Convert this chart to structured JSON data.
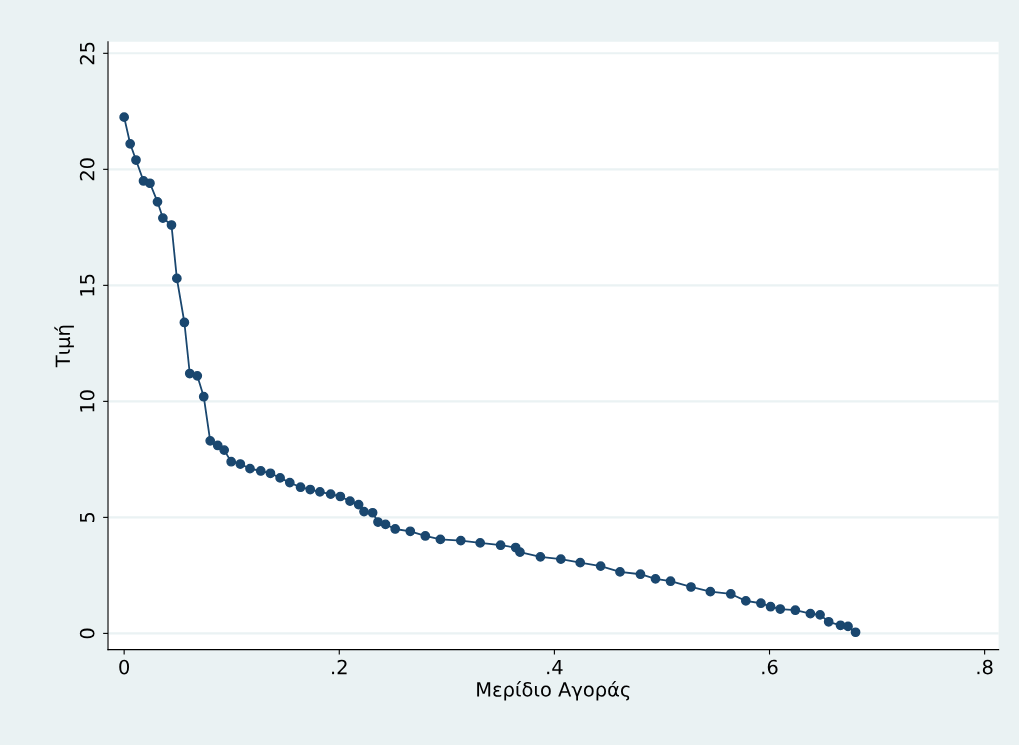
{
  "chart_data": {
    "type": "line",
    "xlabel": "Μερίδιο Αγοράς",
    "ylabel": "Τιμή",
    "x": [
      0,
      0.0056,
      0.011,
      0.018,
      0.024,
      0.031,
      0.036,
      0.044,
      0.049,
      0.056,
      0.061,
      0.068,
      0.074,
      0.08,
      0.087,
      0.093,
      0.0995,
      0.108,
      0.117,
      0.127,
      0.136,
      0.145,
      0.154,
      0.164,
      0.173,
      0.182,
      0.192,
      0.201,
      0.21,
      0.218,
      0.223,
      0.231,
      0.236,
      0.243,
      0.252,
      0.266,
      0.28,
      0.294,
      0.313,
      0.331,
      0.35,
      0.364,
      0.368,
      0.387,
      0.406,
      0.424,
      0.443,
      0.461,
      0.48,
      0.494,
      0.508,
      0.527,
      0.545,
      0.564,
      0.578,
      0.592,
      0.601,
      0.61,
      0.624,
      0.638,
      0.647,
      0.655,
      0.666,
      0.673,
      0.68
    ],
    "series": [
      {
        "color": "#1a476f",
        "values": [
          22.25,
          21.1,
          20.4,
          19.5,
          19.4,
          18.6,
          17.9,
          17.6,
          15.3,
          13.4,
          11.2,
          11.1,
          10.2,
          8.3,
          8.1,
          7.9,
          7.4,
          7.3,
          7.1,
          7.0,
          6.9,
          6.7,
          6.5,
          6.3,
          6.2,
          6.1,
          6.0,
          5.9,
          5.7,
          5.55,
          5.25,
          5.2,
          4.8,
          4.7,
          4.5,
          4.4,
          4.2,
          4.05,
          4.0,
          3.9,
          3.8,
          3.7,
          3.5,
          3.3,
          3.2,
          3.05,
          2.9,
          2.65,
          2.55,
          2.35,
          2.25,
          2.0,
          1.8,
          1.7,
          1.4,
          1.3,
          1.15,
          1.05,
          1.0,
          0.85,
          0.8,
          0.5,
          0.35,
          0.3,
          0.05
        ]
      }
    ],
    "xlim": [
      -0.015,
      0.813
    ],
    "ylim": [
      -0.7,
      25.5
    ],
    "xticks": [
      0,
      {
        "value": 0.2,
        "label": ".2"
      },
      {
        "value": 0.4,
        "label": ".4"
      },
      {
        "value": 0.6,
        "label": ".6"
      },
      {
        "value": 0.8,
        "label": ".8"
      }
    ],
    "yticks": [
      0,
      5,
      10,
      15,
      20,
      25
    ],
    "grid": "y",
    "marker": "circle",
    "line_style": "solid"
  }
}
